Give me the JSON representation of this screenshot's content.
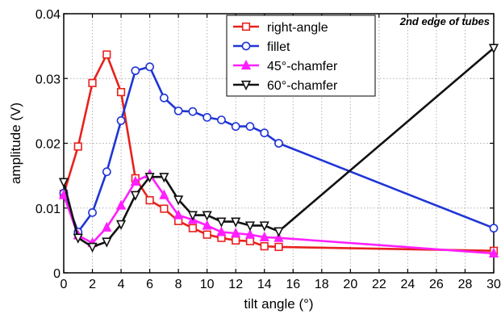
{
  "chart_data": {
    "type": "line",
    "annotation": "2nd edge of tubes",
    "xlabel": "tilt angle (°)",
    "ylabel": "amplitude (V)",
    "xlim": [
      0,
      30
    ],
    "ylim": [
      0,
      0.04
    ],
    "xticks": [
      0,
      2,
      4,
      6,
      8,
      10,
      12,
      14,
      16,
      18,
      20,
      22,
      24,
      26,
      28,
      30
    ],
    "yticks": [
      0,
      0.01,
      0.02,
      0.03,
      0.04
    ],
    "ytick_labels": [
      "0",
      "0.01",
      "0.02",
      "0.03",
      "0.04"
    ],
    "grid": true,
    "legend_position": "top-right",
    "series": [
      {
        "name": "right-angle",
        "color": "#e8211c",
        "marker": "square",
        "x": [
          0,
          1,
          2,
          3,
          4,
          5,
          6,
          7,
          8,
          9,
          10,
          11,
          12,
          13,
          14,
          15,
          30
        ],
        "y": [
          0.0122,
          0.0195,
          0.0293,
          0.0337,
          0.0279,
          0.0146,
          0.0112,
          0.0099,
          0.008,
          0.0069,
          0.0059,
          0.0054,
          0.005,
          0.0049,
          0.0041,
          0.004,
          0.0034
        ]
      },
      {
        "name": "fillet",
        "color": "#1f35d6",
        "marker": "circle",
        "x": [
          0,
          1,
          2,
          3,
          4,
          5,
          6,
          7,
          8,
          9,
          10,
          11,
          12,
          13,
          14,
          15,
          30
        ],
        "y": [
          0.0123,
          0.0063,
          0.0093,
          0.0156,
          0.0235,
          0.0312,
          0.0318,
          0.027,
          0.025,
          0.0249,
          0.024,
          0.0236,
          0.0226,
          0.0226,
          0.0216,
          0.02,
          0.0069
        ]
      },
      {
        "name": "45°-chamfer",
        "color": "#ff1fff",
        "marker": "triangle-up",
        "x": [
          0,
          1,
          2,
          3,
          4,
          5,
          6,
          7,
          8,
          9,
          10,
          11,
          12,
          13,
          14,
          15,
          30
        ],
        "y": [
          0.012,
          0.0058,
          0.0046,
          0.007,
          0.0104,
          0.0141,
          0.0152,
          0.012,
          0.0089,
          0.0082,
          0.0073,
          0.0063,
          0.0061,
          0.0059,
          0.0055,
          0.0054,
          0.003
        ]
      },
      {
        "name": "60°-chamfer",
        "color": "#111111",
        "marker": "triangle-down",
        "x": [
          0,
          1,
          2,
          3,
          4,
          5,
          6,
          7,
          8,
          9,
          10,
          11,
          12,
          13,
          14,
          15,
          30
        ],
        "y": [
          0.014,
          0.0054,
          0.004,
          0.0048,
          0.0075,
          0.012,
          0.0148,
          0.0148,
          0.0113,
          0.0089,
          0.0089,
          0.0079,
          0.0079,
          0.0073,
          0.0073,
          0.0064,
          0.0347
        ]
      }
    ]
  }
}
